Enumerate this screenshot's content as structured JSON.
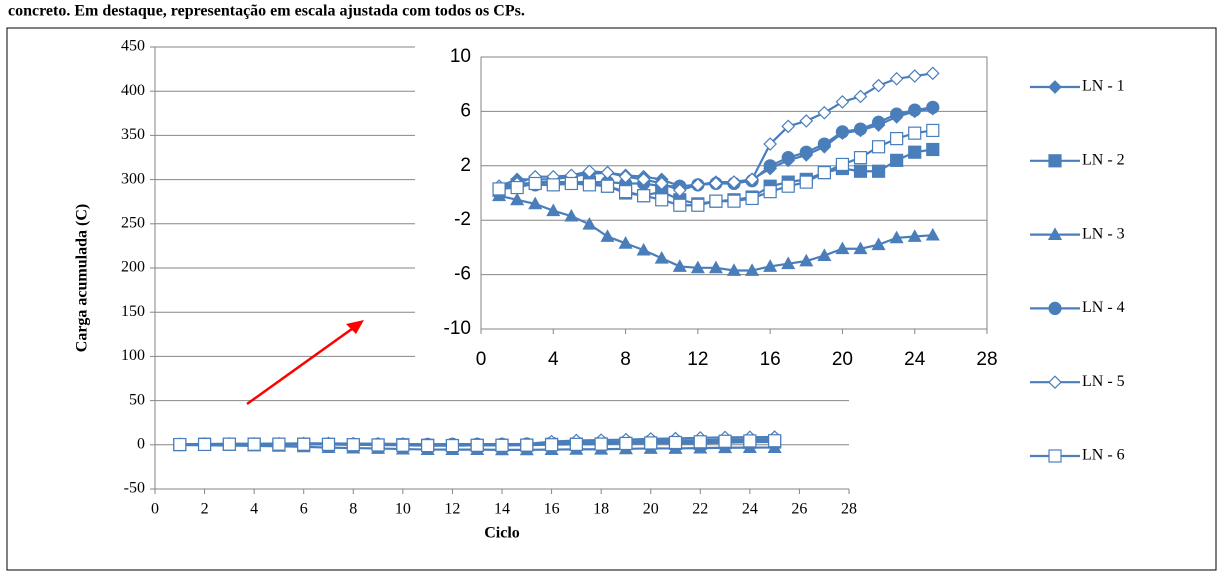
{
  "caption": "concreto. Em destaque, representação em escala ajustada com todos os CPs.",
  "chart_data": [
    {
      "type": "line",
      "x_label": "Ciclo",
      "y_label": "Carga acumulada (C)",
      "xlim": [
        0,
        28
      ],
      "xticks": [
        0,
        2,
        4,
        6,
        8,
        10,
        12,
        14,
        16,
        18,
        20,
        22,
        24,
        26,
        28
      ],
      "ylim": [
        -50,
        450
      ],
      "yticks": [
        -50,
        0,
        50,
        100,
        150,
        200,
        250,
        300,
        350,
        400,
        450
      ],
      "grid": true,
      "legend": "right",
      "x": [
        1,
        2,
        3,
        4,
        5,
        6,
        7,
        8,
        9,
        10,
        11,
        12,
        13,
        14,
        15,
        16,
        17,
        18,
        19,
        20,
        21,
        22,
        23,
        24,
        25
      ],
      "series": [
        {
          "name": "LN - 1",
          "color": "#4a7ebb",
          "marker": "diamond",
          "values": [
            0.5,
            1,
            1,
            1,
            1.2,
            1.4,
            1.5,
            1.3,
            1.2,
            1.0,
            0.5,
            0.6,
            0.8,
            0.8,
            1.0,
            1.8,
            2.4,
            2.8,
            3.4,
            4.4,
            4.6,
            5,
            5.6,
            6.0,
            6.2
          ]
        },
        {
          "name": "LN - 2",
          "color": "#4a7ebb",
          "marker": "square",
          "values": [
            0.2,
            0.6,
            0.8,
            0.8,
            0.8,
            0.8,
            0.5,
            0,
            -0.2,
            0.1,
            -0.5,
            -0.8,
            -0.6,
            -0.5,
            -0.3,
            0.5,
            0.8,
            1.0,
            1.5,
            1.8,
            1.6,
            1.6,
            2.4,
            3.0,
            3.2
          ]
        },
        {
          "name": "LN - 3",
          "color": "#4a7ebb",
          "marker": "triangle",
          "values": [
            -0.2,
            -0.5,
            -0.8,
            -1.3,
            -1.7,
            -2.3,
            -3.2,
            -3.7,
            -4.2,
            -4.8,
            -5.4,
            -5.5,
            -5.5,
            -5.7,
            -5.7,
            -5.4,
            -5.2,
            -5.0,
            -4.6,
            -4.1,
            -4.1,
            -3.8,
            -3.3,
            -3.2,
            -3.1
          ]
        },
        {
          "name": "LN - 4",
          "color": "#4a7ebb",
          "marker": "circle",
          "values": [
            0.3,
            0.8,
            0.6,
            0.6,
            0.7,
            0.8,
            0.8,
            0.7,
            0.7,
            0.5,
            0.5,
            0.6,
            0.7,
            0.7,
            0.9,
            2.0,
            2.6,
            3.0,
            3.6,
            4.5,
            4.7,
            5.2,
            5.8,
            6.1,
            6.3
          ]
        },
        {
          "name": "LN - 5",
          "color": "#4a7ebb",
          "marker": "diamond-open",
          "values": [
            0.5,
            0.7,
            1.2,
            1.2,
            1.3,
            1.6,
            1.5,
            1.2,
            1.0,
            0.7,
            0.2,
            0.6,
            0.7,
            0.8,
            1.0,
            3.6,
            4.9,
            5.3,
            5.9,
            6.7,
            7.1,
            7.9,
            8.4,
            8.6,
            8.8
          ]
        },
        {
          "name": "LN - 6",
          "color": "#4a7ebb",
          "marker": "square-open",
          "values": [
            0.3,
            0.4,
            0.7,
            0.6,
            0.7,
            0.6,
            0.5,
            0.1,
            -0.2,
            -0.5,
            -0.9,
            -0.9,
            -0.6,
            -0.6,
            -0.4,
            0.1,
            0.5,
            0.8,
            1.5,
            2.1,
            2.6,
            3.4,
            4.0,
            4.4,
            4.6
          ]
        }
      ]
    },
    {
      "type": "line",
      "xlim": [
        0,
        28
      ],
      "xticks": [
        0,
        4,
        8,
        12,
        16,
        20,
        24,
        28
      ],
      "ylim": [
        -10,
        10
      ],
      "yticks": [
        -10,
        -6,
        -2,
        2,
        6,
        10
      ],
      "grid": true,
      "x": [
        1,
        2,
        3,
        4,
        5,
        6,
        7,
        8,
        9,
        10,
        11,
        12,
        13,
        14,
        15,
        16,
        17,
        18,
        19,
        20,
        21,
        22,
        23,
        24,
        25
      ],
      "series": [
        {
          "color": "#4a7ebb",
          "marker": "diamond",
          "values": [
            0.5,
            1,
            1,
            1,
            1.2,
            1.4,
            1.5,
            1.3,
            1.2,
            1.0,
            0.5,
            0.6,
            0.8,
            0.8,
            1.0,
            1.8,
            2.4,
            2.8,
            3.4,
            4.4,
            4.6,
            5,
            5.6,
            6.0,
            6.2
          ]
        },
        {
          "color": "#4a7ebb",
          "marker": "square",
          "values": [
            0.2,
            0.6,
            0.8,
            0.8,
            0.8,
            0.8,
            0.5,
            0,
            -0.2,
            0.1,
            -0.5,
            -0.8,
            -0.6,
            -0.5,
            -0.3,
            0.5,
            0.8,
            1.0,
            1.5,
            1.8,
            1.6,
            1.6,
            2.4,
            3.0,
            3.2
          ]
        },
        {
          "color": "#4a7ebb",
          "marker": "triangle",
          "values": [
            -0.2,
            -0.5,
            -0.8,
            -1.3,
            -1.7,
            -2.3,
            -3.2,
            -3.7,
            -4.2,
            -4.8,
            -5.4,
            -5.5,
            -5.5,
            -5.7,
            -5.7,
            -5.4,
            -5.2,
            -5.0,
            -4.6,
            -4.1,
            -4.1,
            -3.8,
            -3.3,
            -3.2,
            -3.1
          ]
        },
        {
          "color": "#4a7ebb",
          "marker": "circle",
          "values": [
            0.3,
            0.8,
            0.6,
            0.6,
            0.7,
            0.8,
            0.8,
            0.7,
            0.7,
            0.5,
            0.5,
            0.6,
            0.7,
            0.7,
            0.9,
            2.0,
            2.6,
            3.0,
            3.6,
            4.5,
            4.7,
            5.2,
            5.8,
            6.1,
            6.3
          ]
        },
        {
          "color": "#4a7ebb",
          "marker": "diamond-open",
          "values": [
            0.5,
            0.7,
            1.2,
            1.2,
            1.3,
            1.6,
            1.5,
            1.2,
            1.0,
            0.7,
            0.2,
            0.6,
            0.7,
            0.8,
            1.0,
            3.6,
            4.9,
            5.3,
            5.9,
            6.7,
            7.1,
            7.9,
            8.4,
            8.6,
            8.8
          ]
        },
        {
          "color": "#4a7ebb",
          "marker": "square-open",
          "values": [
            0.3,
            0.4,
            0.7,
            0.6,
            0.7,
            0.6,
            0.5,
            0.1,
            -0.2,
            -0.5,
            -0.9,
            -0.9,
            -0.6,
            -0.6,
            -0.4,
            0.1,
            0.5,
            0.8,
            1.5,
            2.1,
            2.6,
            3.4,
            4.0,
            4.4,
            4.6
          ]
        }
      ]
    }
  ]
}
